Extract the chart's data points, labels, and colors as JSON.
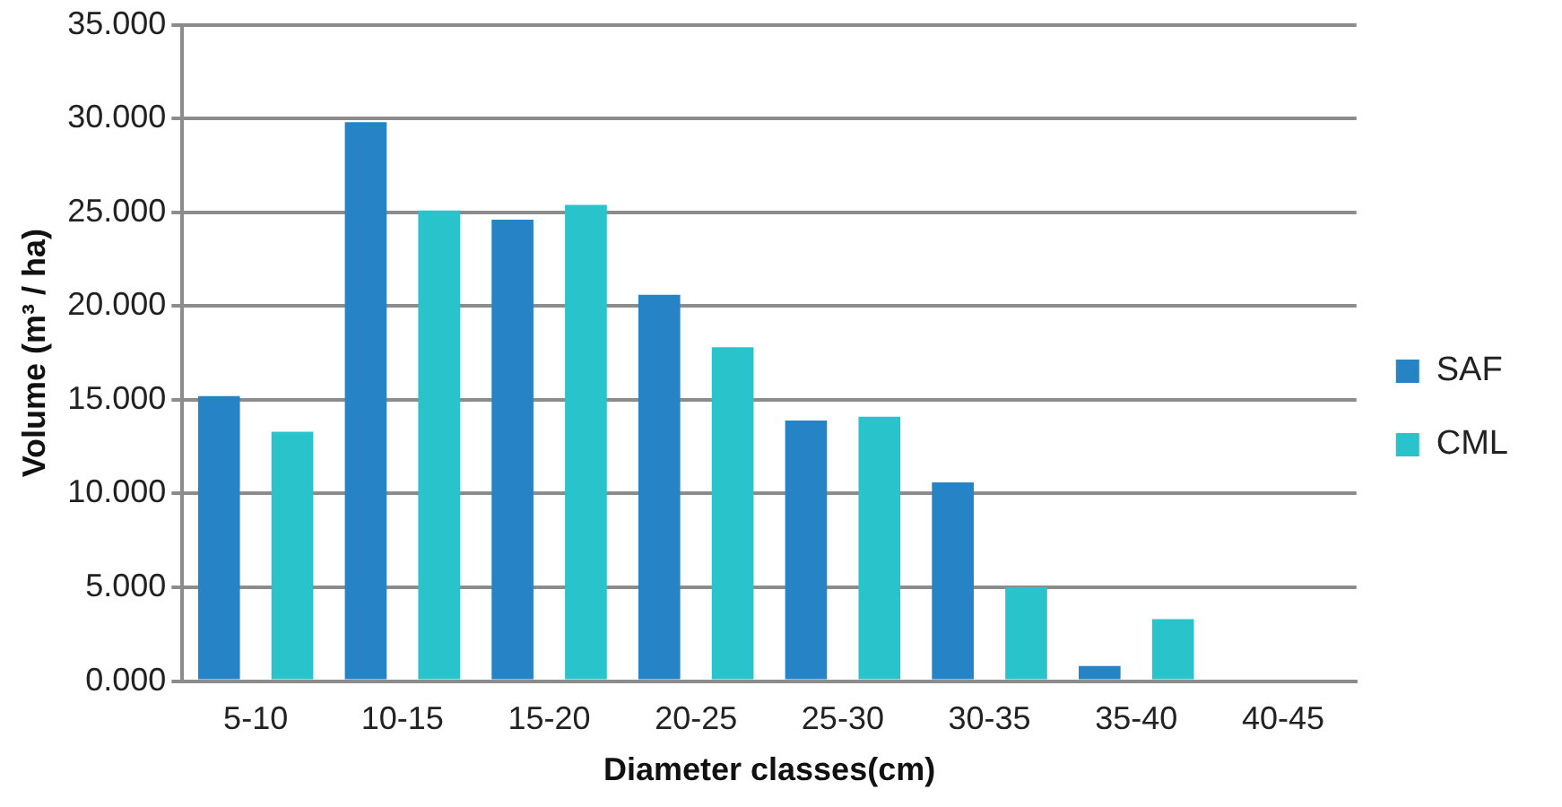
{
  "chart_data": {
    "type": "bar",
    "xlabel": "Diameter classes(cm)",
    "ylabel": "Volume (m³ / ha)",
    "categories": [
      "5-10",
      "10-15",
      "15-20",
      "20-25",
      "25-30",
      "30-35",
      "35-40",
      "40-45"
    ],
    "series": [
      {
        "name": "SAF",
        "color": "#2683c6",
        "values": [
          15.2,
          29.8,
          24.6,
          20.6,
          13.9,
          10.6,
          0.8,
          0
        ]
      },
      {
        "name": "CML",
        "color": "#29c3cb",
        "values": [
          13.3,
          25.1,
          25.4,
          17.8,
          14.1,
          5.0,
          3.3,
          0
        ]
      }
    ],
    "ylim": [
      0,
      35
    ],
    "yticks": [
      {
        "value": 0,
        "label": "0.000"
      },
      {
        "value": 5,
        "label": "5.000"
      },
      {
        "value": 10,
        "label": "10.000"
      },
      {
        "value": 15,
        "label": "15.000"
      },
      {
        "value": 20,
        "label": "20.000"
      },
      {
        "value": 25,
        "label": "25.000"
      },
      {
        "value": 30,
        "label": "30.000"
      },
      {
        "value": 35,
        "label": "35.000"
      }
    ],
    "grid": "y",
    "legend": "right"
  }
}
